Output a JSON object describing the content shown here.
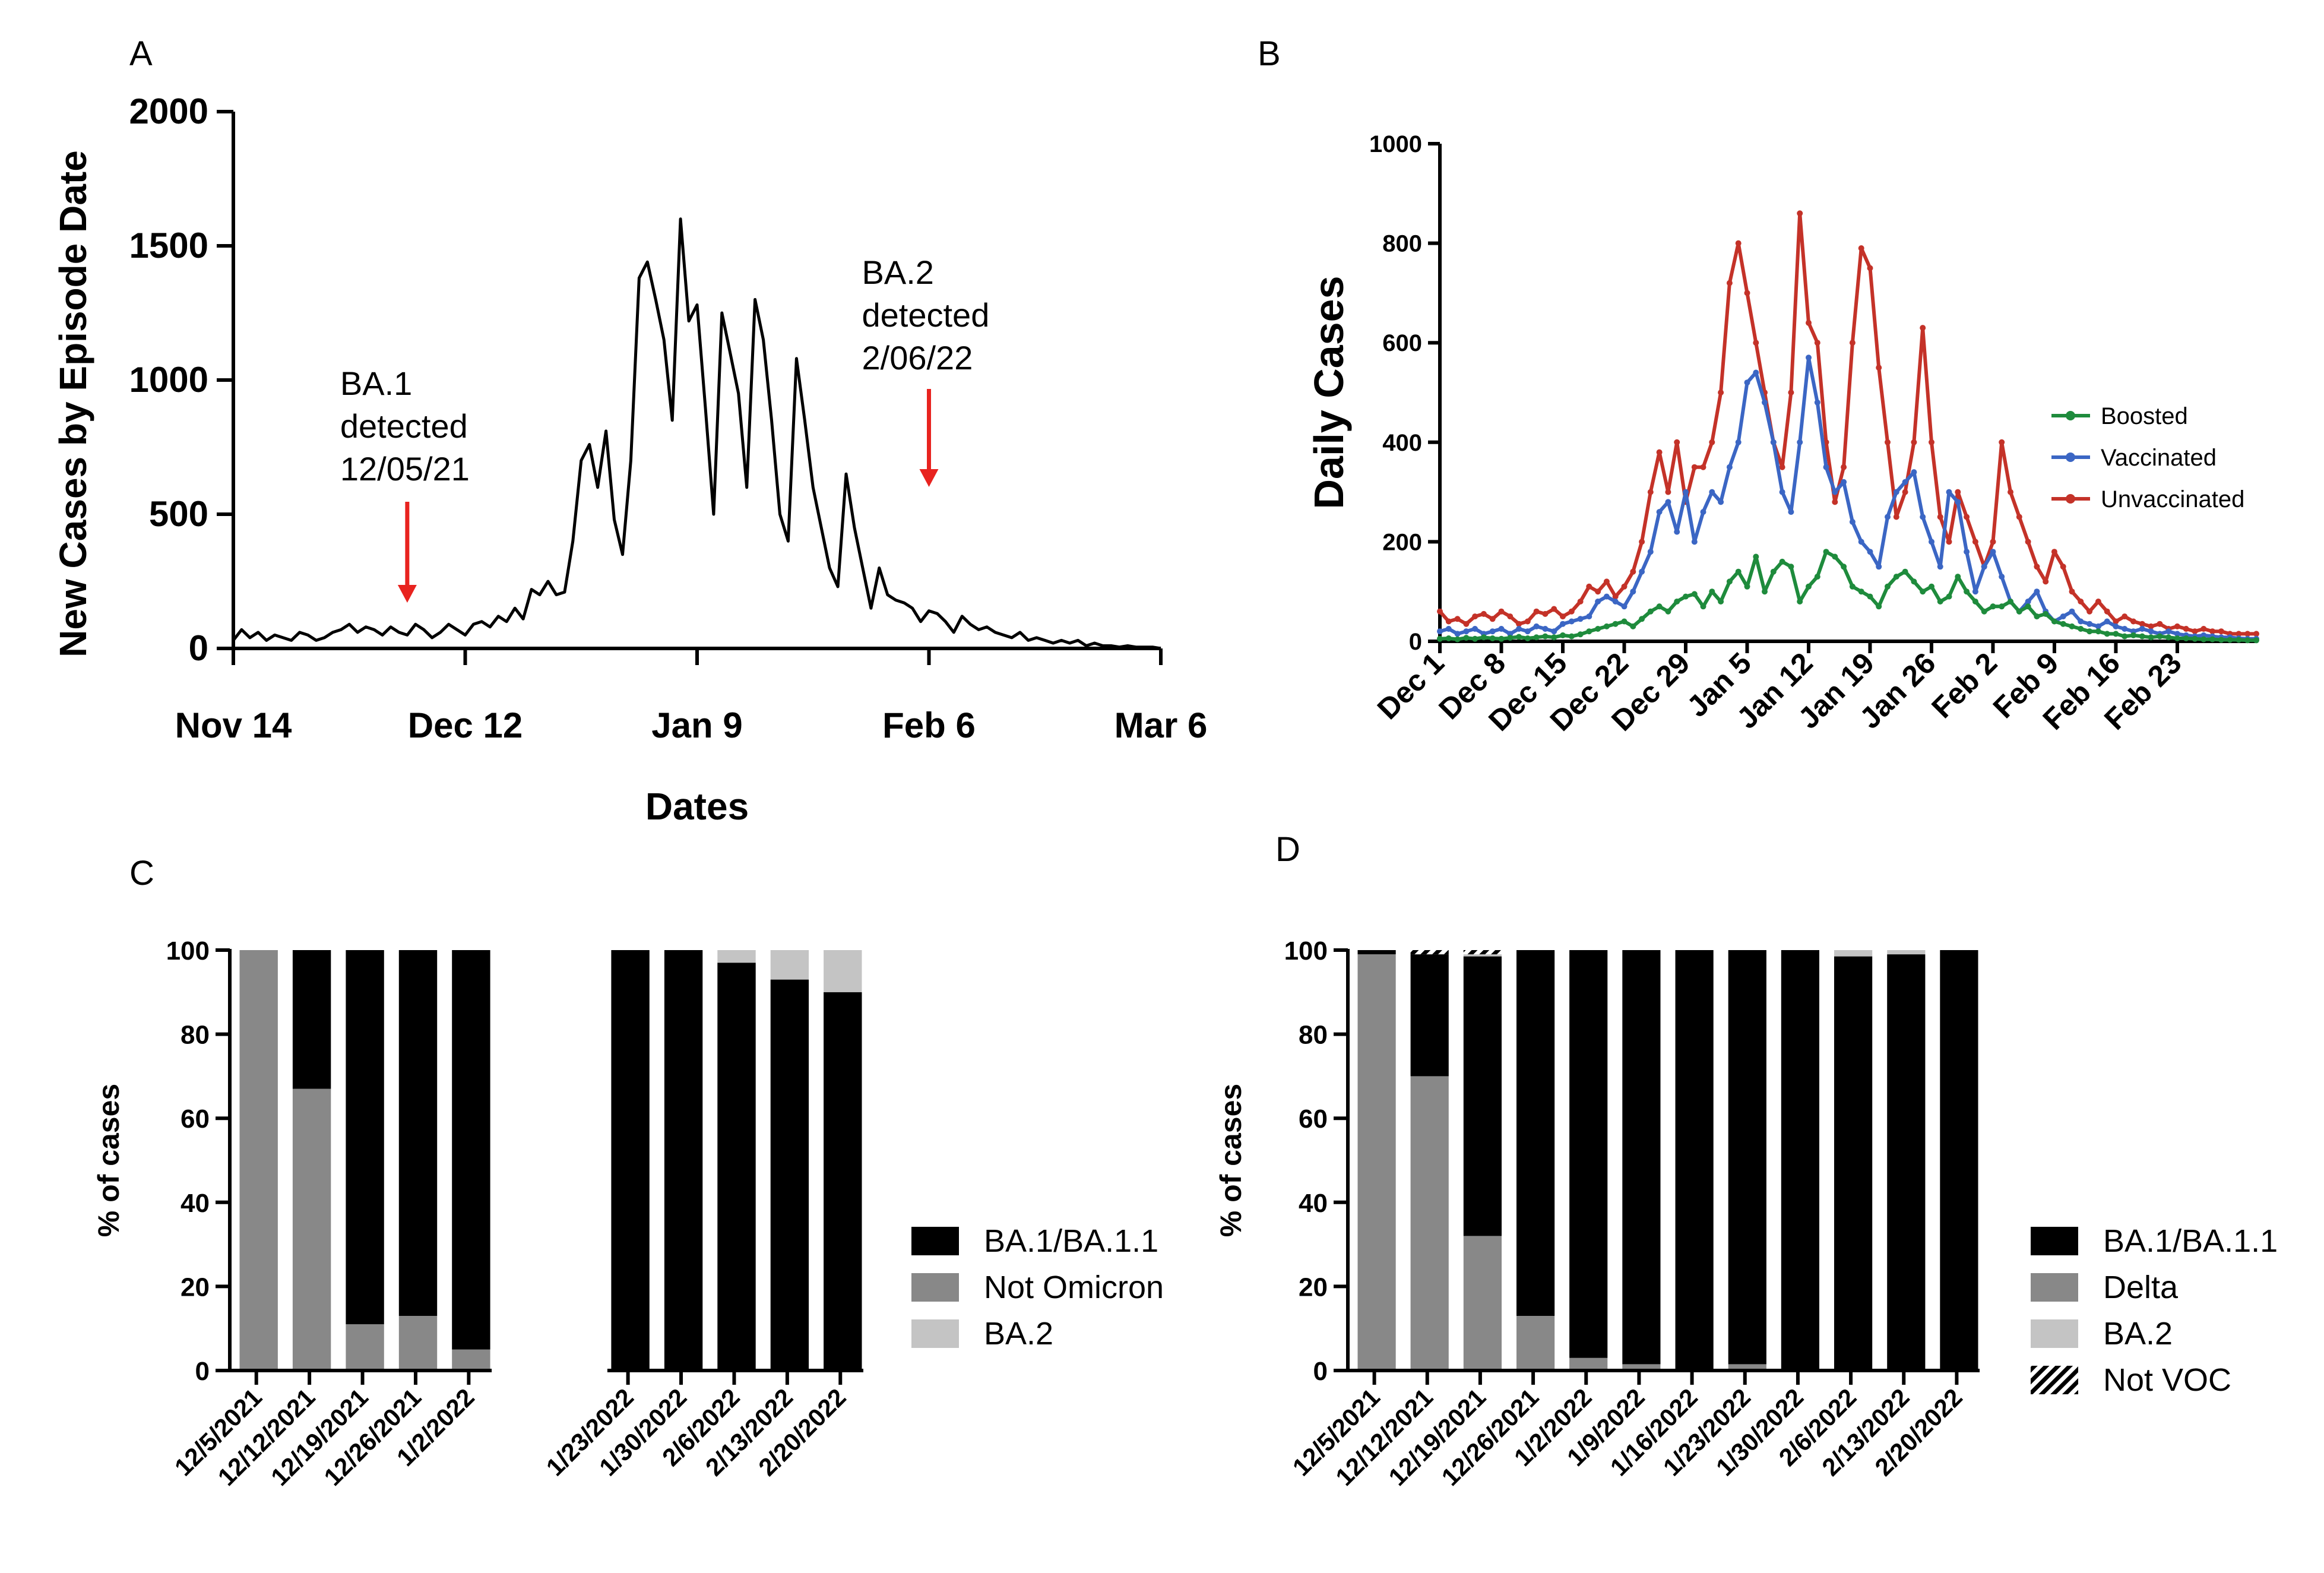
{
  "panels": {
    "A": "A",
    "B": "B",
    "C": "C",
    "D": "D"
  },
  "chart_data": [
    {
      "id": "A",
      "type": "line",
      "title": "",
      "xlabel": "Dates",
      "ylabel": "New Cases by Episode Date",
      "ylim": [
        0,
        2000
      ],
      "yticks": [
        "0",
        "500",
        "1000",
        "1500",
        "2000"
      ],
      "ytick_values": [
        0,
        500,
        1000,
        1500,
        2000
      ],
      "x_start_day": 0,
      "x_end_day": 112,
      "xticks": [
        "Nov 14",
        "Dec 12",
        "Jan 9",
        "Feb 6",
        "Mar 6"
      ],
      "xtick_days": [
        0,
        28,
        56,
        84,
        112
      ],
      "series": [
        {
          "name": "New cases",
          "color": "#000000",
          "values": [
            30,
            70,
            40,
            60,
            30,
            50,
            40,
            30,
            60,
            50,
            30,
            40,
            60,
            70,
            90,
            60,
            80,
            70,
            50,
            80,
            60,
            50,
            90,
            70,
            40,
            60,
            90,
            70,
            50,
            90,
            100,
            80,
            120,
            100,
            150,
            110,
            220,
            200,
            250,
            200,
            210,
            400,
            700,
            760,
            600,
            810,
            480,
            350,
            700,
            1380,
            1440,
            1300,
            1150,
            850,
            1600,
            1220,
            1280,
            900,
            500,
            1250,
            1100,
            950,
            600,
            1300,
            1150,
            850,
            500,
            400,
            1080,
            850,
            600,
            450,
            300,
            230,
            650,
            450,
            300,
            150,
            300,
            200,
            180,
            170,
            150,
            100,
            140,
            130,
            100,
            60,
            120,
            90,
            70,
            80,
            60,
            50,
            40,
            60,
            30,
            40,
            30,
            20,
            30,
            20,
            30,
            10,
            20,
            10,
            10,
            5,
            10,
            5,
            5,
            5,
            0
          ]
        }
      ],
      "annotations": [
        {
          "lines": [
            "BA.1",
            "detected",
            "12/05/21"
          ],
          "day": 21,
          "color": "#e8231f"
        },
        {
          "lines": [
            "BA.2",
            "detected",
            "2/06/22"
          ],
          "day": 84,
          "color": "#e8231f"
        }
      ]
    },
    {
      "id": "B",
      "type": "line",
      "title": "",
      "xlabel": "",
      "ylabel": "Daily Cases",
      "ylim": [
        0,
        1000
      ],
      "yticks": [
        "0",
        "200",
        "400",
        "600",
        "800",
        "1000"
      ],
      "ytick_values": [
        0,
        200,
        400,
        600,
        800,
        1000
      ],
      "x_end_day": 93,
      "xticks": [
        "Dec 1",
        "Dec 8",
        "Dec 15",
        "Dec 22",
        "Dec 29",
        "Jan 5",
        "Jan 12",
        "Jan 19",
        "Jan 26",
        "Feb 2",
        "Feb 9",
        "Feb 16",
        "Feb 23"
      ],
      "xtick_days": [
        0,
        7,
        14,
        21,
        28,
        35,
        42,
        49,
        56,
        63,
        70,
        77,
        84
      ],
      "legend_position": "right",
      "series": [
        {
          "name": "Boosted",
          "color": "#1e8b3c",
          "values": [
            5,
            6,
            4,
            7,
            5,
            8,
            6,
            5,
            7,
            9,
            6,
            8,
            10,
            8,
            12,
            10,
            14,
            20,
            25,
            30,
            35,
            40,
            30,
            45,
            60,
            70,
            60,
            80,
            90,
            95,
            70,
            100,
            80,
            120,
            140,
            110,
            170,
            100,
            140,
            160,
            150,
            80,
            110,
            130,
            180,
            170,
            150,
            110,
            100,
            90,
            70,
            110,
            130,
            140,
            120,
            100,
            110,
            80,
            90,
            130,
            100,
            80,
            60,
            70,
            70,
            80,
            60,
            70,
            50,
            55,
            40,
            35,
            30,
            25,
            20,
            20,
            15,
            15,
            10,
            12,
            10,
            8,
            10,
            8,
            6,
            6,
            5,
            4,
            4,
            3,
            3,
            3,
            2,
            2
          ]
        },
        {
          "name": "Vaccinated",
          "color": "#3b66c4",
          "values": [
            20,
            25,
            15,
            20,
            25,
            15,
            20,
            25,
            15,
            25,
            20,
            30,
            25,
            20,
            35,
            40,
            45,
            50,
            80,
            90,
            80,
            70,
            100,
            140,
            180,
            260,
            280,
            220,
            300,
            200,
            260,
            300,
            280,
            350,
            400,
            520,
            540,
            480,
            400,
            300,
            260,
            400,
            570,
            480,
            350,
            300,
            320,
            240,
            200,
            180,
            150,
            250,
            300,
            320,
            340,
            250,
            200,
            150,
            300,
            280,
            180,
            100,
            150,
            180,
            130,
            80,
            60,
            80,
            100,
            60,
            40,
            50,
            60,
            40,
            35,
            30,
            40,
            30,
            25,
            20,
            25,
            20,
            15,
            20,
            15,
            12,
            10,
            12,
            10,
            8,
            8,
            6,
            5,
            5
          ]
        },
        {
          "name": "Unvaccinated",
          "color": "#c43228",
          "values": [
            60,
            40,
            45,
            35,
            50,
            55,
            45,
            60,
            50,
            35,
            40,
            60,
            55,
            65,
            50,
            60,
            80,
            110,
            100,
            120,
            90,
            110,
            140,
            200,
            300,
            380,
            300,
            400,
            280,
            350,
            350,
            400,
            500,
            720,
            800,
            700,
            600,
            500,
            400,
            350,
            500,
            860,
            640,
            600,
            400,
            280,
            350,
            600,
            790,
            750,
            550,
            400,
            250,
            300,
            400,
            630,
            400,
            250,
            200,
            300,
            250,
            200,
            150,
            200,
            400,
            300,
            250,
            200,
            150,
            120,
            180,
            150,
            100,
            80,
            60,
            80,
            60,
            40,
            50,
            40,
            35,
            30,
            35,
            25,
            30,
            25,
            20,
            25,
            20,
            20,
            15,
            15,
            15,
            15
          ]
        }
      ]
    },
    {
      "id": "C",
      "type": "bar",
      "stacked": true,
      "title": "",
      "xlabel": "",
      "ylabel": "% of cases",
      "ylim": [
        0,
        100
      ],
      "yticks": [
        "0",
        "20",
        "40",
        "60",
        "80",
        "100"
      ],
      "ytick_values": [
        0,
        20,
        40,
        60,
        80,
        100
      ],
      "categories": [
        "12/5/2021",
        "12/12/2021",
        "12/19/2021",
        "12/26/2021",
        "1/2/2022",
        "",
        "",
        "1/23/2022",
        "1/30/2022",
        "2/6/2022",
        "2/13/2022",
        "2/20/2022"
      ],
      "series": [
        {
          "name": "Not Omicron",
          "color": "#888888",
          "values": [
            100,
            67,
            11,
            13,
            5,
            0,
            0,
            0,
            0,
            0,
            0,
            0
          ]
        },
        {
          "name": "BA.1/BA.1.1",
          "color": "#000000",
          "values": [
            0,
            33,
            89,
            87,
            95,
            0,
            0,
            100,
            100,
            97,
            93,
            90
          ]
        },
        {
          "name": "BA.2",
          "color": "#c4c4c4",
          "values": [
            0,
            0,
            0,
            0,
            0,
            0,
            0,
            0,
            0,
            3,
            7,
            10
          ]
        }
      ],
      "legend_order": [
        "BA.1/BA.1.1",
        "Not Omicron",
        "BA.2"
      ],
      "legend_position": "right"
    },
    {
      "id": "D",
      "type": "bar",
      "stacked": true,
      "title": "",
      "xlabel": "",
      "ylabel": "% of cases",
      "ylim": [
        0,
        100
      ],
      "yticks": [
        "0",
        "20",
        "40",
        "60",
        "80",
        "100"
      ],
      "ytick_values": [
        0,
        20,
        40,
        60,
        80,
        100
      ],
      "categories": [
        "12/5/2021",
        "12/12/2021",
        "12/19/2021",
        "12/26/2021",
        "1/2/2022",
        "1/9/2022",
        "1/16/2022",
        "1/23/2022",
        "1/30/2022",
        "2/6/2022",
        "2/13/2022",
        "2/20/2022"
      ],
      "series": [
        {
          "name": "Delta",
          "color": "#888888",
          "values": [
            99,
            70,
            32,
            13,
            3,
            1.5,
            0,
            1.5,
            0,
            0,
            0,
            0
          ]
        },
        {
          "name": "BA.1/BA.1.1",
          "color": "#000000",
          "values": [
            1,
            29,
            66.5,
            87,
            97,
            98.5,
            100,
            98.5,
            100,
            98.5,
            99,
            100
          ]
        },
        {
          "name": "BA.2",
          "color": "#c4c4c4",
          "values": [
            0,
            0,
            0.5,
            0,
            0,
            0,
            0,
            0,
            0,
            1.5,
            1,
            0
          ]
        },
        {
          "name": "Not VOC",
          "color": "hatch",
          "values": [
            0,
            1,
            1,
            0,
            0,
            0,
            0,
            0,
            0,
            0,
            0,
            0
          ]
        }
      ],
      "legend_order": [
        "BA.1/BA.1.1",
        "Delta",
        "BA.2",
        "Not VOC"
      ],
      "legend_position": "right"
    }
  ]
}
